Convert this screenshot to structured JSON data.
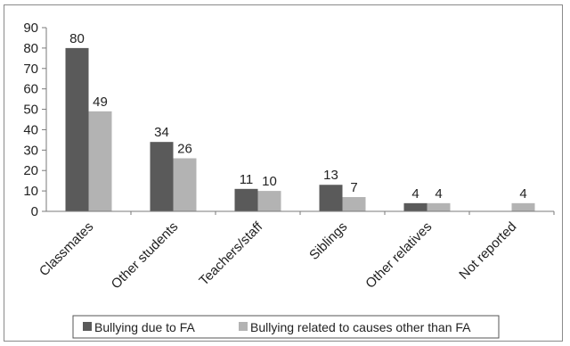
{
  "chart_data": {
    "type": "bar",
    "categories": [
      "Classmates",
      "Other students",
      "Teachers/staff",
      "Siblings",
      "Other relatives",
      "Not reported"
    ],
    "series": [
      {
        "name": "Bullying due to FA",
        "color": "#5a5a5a",
        "values": [
          80,
          34,
          11,
          13,
          4,
          null
        ]
      },
      {
        "name": "Bullying related to causes other than FA",
        "color": "#b3b3b3",
        "values": [
          49,
          26,
          10,
          7,
          4,
          4
        ]
      }
    ],
    "ylim": [
      0,
      90
    ],
    "yticks": [
      0,
      10,
      20,
      30,
      40,
      50,
      60,
      70,
      80,
      90
    ],
    "grid": false,
    "legend_position": "bottom"
  }
}
